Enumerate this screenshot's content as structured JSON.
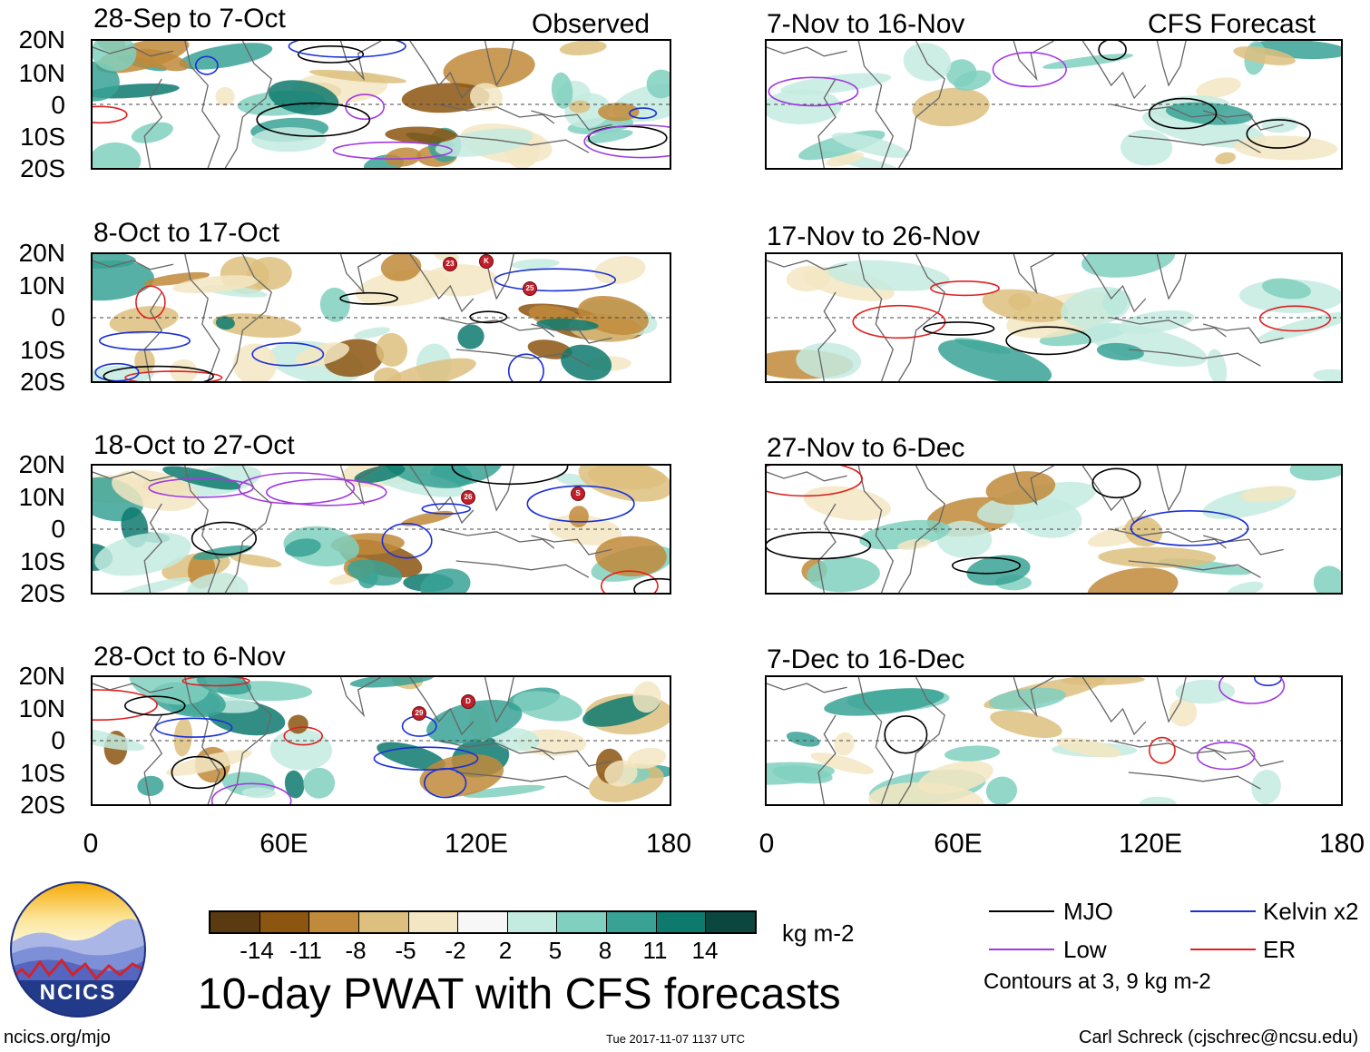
{
  "labels": {
    "observed": "Observed",
    "forecast": "CFS Forecast"
  },
  "panels": [
    {
      "title": "28-Sep to 7-Oct"
    },
    {
      "title": "8-Oct to 17-Oct"
    },
    {
      "title": "18-Oct to 27-Oct"
    },
    {
      "title": "28-Oct to 6-Nov"
    },
    {
      "title": "7-Nov to 16-Nov"
    },
    {
      "title": "17-Nov to 26-Nov"
    },
    {
      "title": "27-Nov to 6-Dec"
    },
    {
      "title": "7-Dec to 16-Dec"
    }
  ],
  "lat_ticks": [
    "20N",
    "10N",
    "0",
    "10S",
    "20S"
  ],
  "lon_ticks": [
    "0",
    "60E",
    "120E",
    "180"
  ],
  "colorbar": {
    "colors": [
      "#5a3a10",
      "#8c5510",
      "#c08a3a",
      "#ddbf7e",
      "#f3e6c2",
      "#f7f7f7",
      "#c4ebe0",
      "#80d0c0",
      "#38a295",
      "#0e7a6e",
      "#0c473f"
    ],
    "tick_labels": [
      "-14",
      "-11",
      "-8",
      "-5",
      "-2",
      "2",
      "5",
      "8",
      "11",
      "14"
    ],
    "units": "kg m-2"
  },
  "legend": {
    "items": [
      {
        "label": "MJO",
        "color": "#000000"
      },
      {
        "label": "Kelvin x2",
        "color": "#1a2fd6"
      },
      {
        "label": "Low",
        "color": "#a23ae0"
      },
      {
        "label": "ER",
        "color": "#e02020"
      }
    ],
    "note": "Contours at 3, 9 kg m-2"
  },
  "title": "10-day PWAT with CFS forecasts",
  "logo_text": "NCICS",
  "footer": {
    "url": "ncics.org/mjo",
    "timestamp": "Tue 2017-11-07 1137 UTC",
    "credit": "Carl Schreck (cjschrec@ncsu.edu)"
  },
  "storm_markers": [
    {
      "panel": 1,
      "label": "23"
    },
    {
      "panel": 1,
      "label": "K"
    },
    {
      "panel": 1,
      "label": "25"
    },
    {
      "panel": 2,
      "label": "26"
    },
    {
      "panel": 2,
      "label": "S"
    },
    {
      "panel": 3,
      "label": "29"
    },
    {
      "panel": 3,
      "label": "D"
    }
  ]
}
